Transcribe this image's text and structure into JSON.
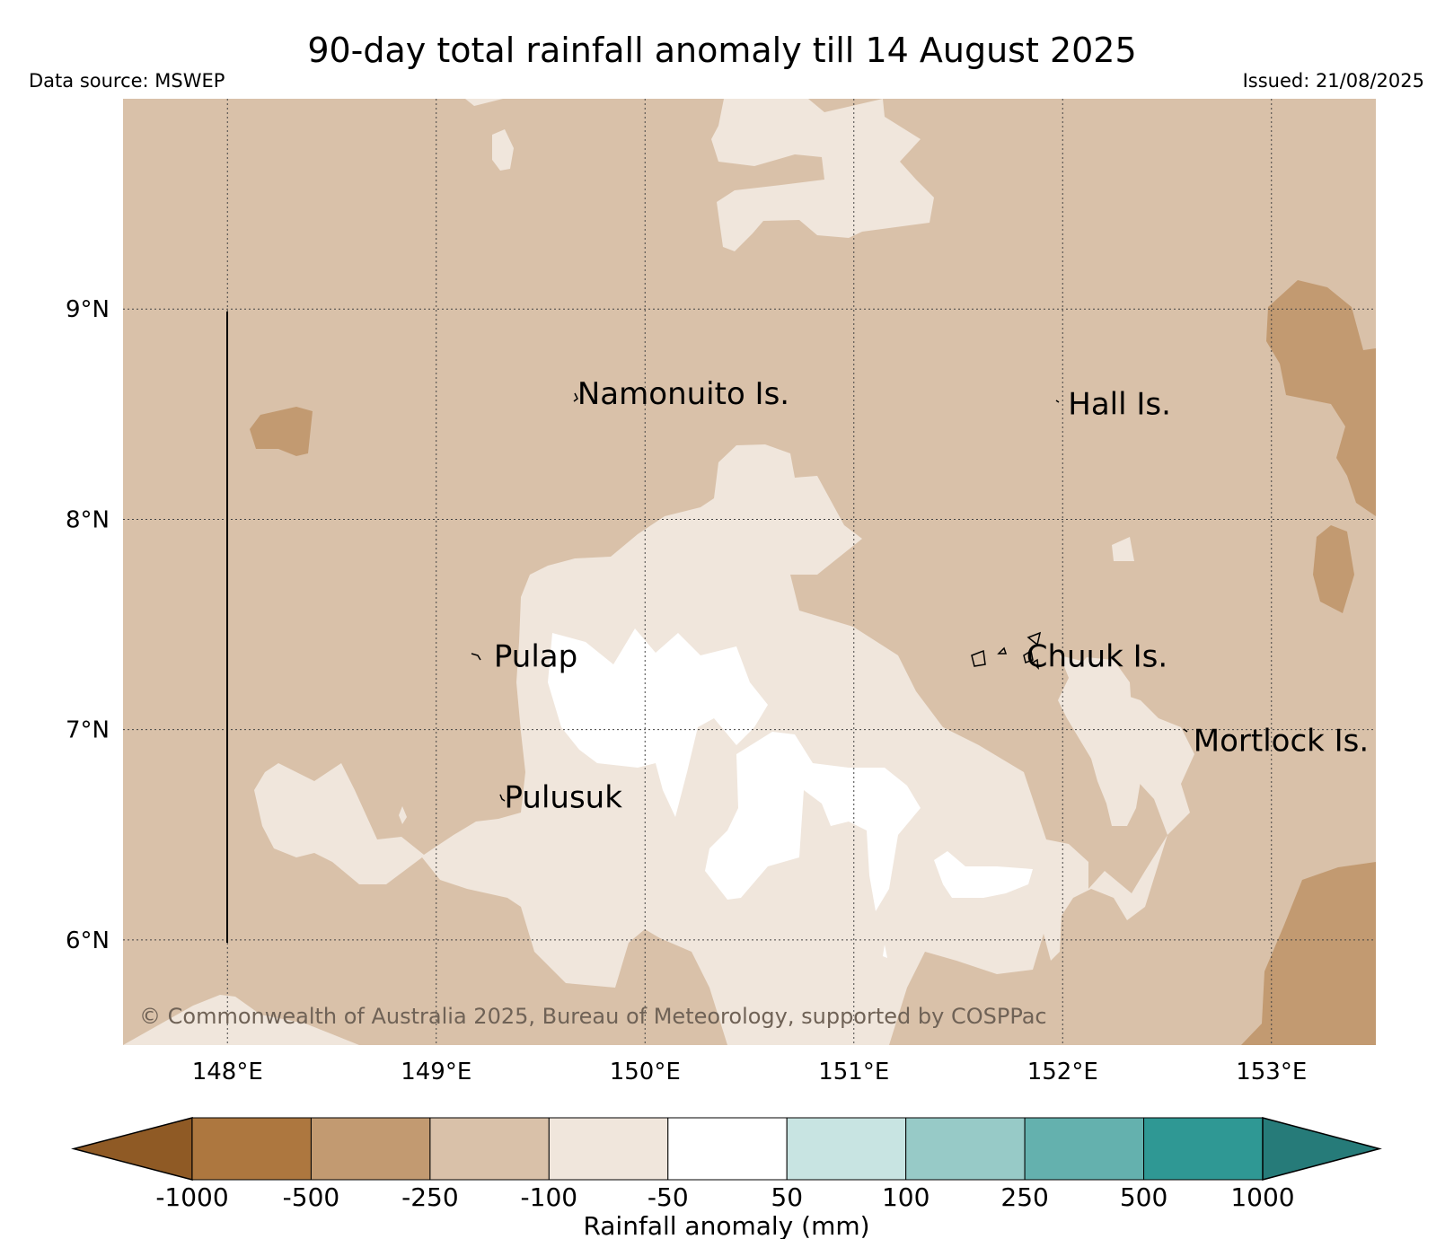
{
  "map": {
    "title": "90-day total rainfall anomaly till 14 August 2025",
    "data_source": "Data source: MSWEP",
    "issued": "Issued: 21/08/2025",
    "copyright": "© Commonwealth of Australia 2025, Bureau of Meteorology, supported by COSPPac",
    "extent": {
      "lon_min": 147.5,
      "lon_max": 153.5,
      "lat_min": 5.5,
      "lat_max": 10.0
    },
    "lon_ticks": [
      {
        "value": 148,
        "label": "148°E"
      },
      {
        "value": 149,
        "label": "149°E"
      },
      {
        "value": 150,
        "label": "150°E"
      },
      {
        "value": 151,
        "label": "151°E"
      },
      {
        "value": 152,
        "label": "152°E"
      },
      {
        "value": 153,
        "label": "153°E"
      }
    ],
    "lat_ticks": [
      {
        "value": 9,
        "label": "9°N"
      },
      {
        "value": 8,
        "label": "8°N"
      },
      {
        "value": 7,
        "label": "7°N"
      },
      {
        "value": 6,
        "label": "6°N"
      }
    ],
    "places": [
      {
        "name": "Namonuito Is.",
        "lon": 149.65,
        "lat": 8.6
      },
      {
        "name": "Hall Is.",
        "lon": 152.0,
        "lat": 8.55
      },
      {
        "name": "Pulap",
        "lon": 149.25,
        "lat": 7.35
      },
      {
        "name": "Pulusuk",
        "lon": 149.3,
        "lat": 6.68
      },
      {
        "name": "Chuuk Is.",
        "lon": 151.8,
        "lat": 7.35
      },
      {
        "name": "Mortlock Is.",
        "lon": 152.6,
        "lat": 6.95
      }
    ],
    "colors": {
      "lt_minus1000": "#8f5a25",
      "minus1000_minus500": "#ad773f",
      "minus500_minus250": "#c29a71",
      "minus250_minus100": "#d9c1a9",
      "minus100_minus50": "#f0e6dc",
      "minus50_50": "#ffffff",
      "p50_p100": "#c8e4e2",
      "p100_p250": "#97cac7",
      "p250_p500": "#64b1ae",
      "p500_p1000": "#2f9894",
      "gt_1000": "#267b79"
    }
  },
  "colorbar": {
    "label": "Rainfall anomaly (mm)",
    "ticks": [
      "-1000",
      "-500",
      "-250",
      "-100",
      "-50",
      "50",
      "100",
      "250",
      "500",
      "1000"
    ],
    "colors": [
      "#8f5a25",
      "#ad773f",
      "#c29a71",
      "#d9c1a9",
      "#f0e6dc",
      "#ffffff",
      "#c8e4e2",
      "#97cac7",
      "#64b1ae",
      "#2f9894",
      "#267b79"
    ]
  }
}
